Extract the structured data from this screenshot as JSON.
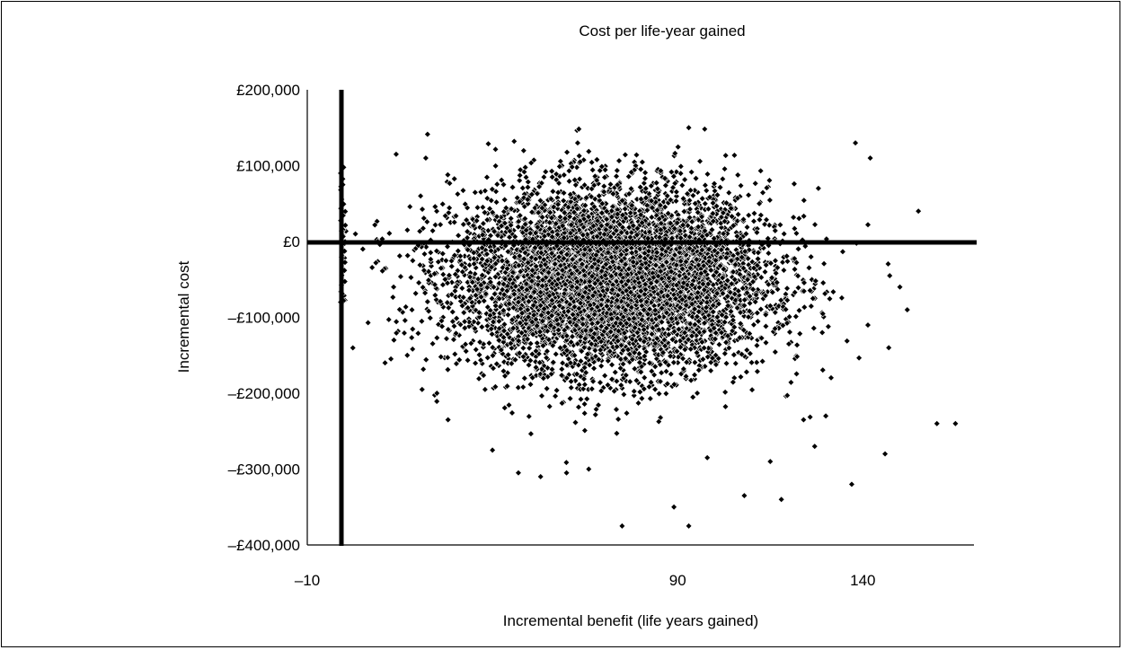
{
  "chart_data": {
    "type": "scatter",
    "title": "Cost per life-year gained",
    "xlabel": "Incremental benefit (life years gained)",
    "ylabel": "Incremental cost",
    "xlim": [
      -10,
      170
    ],
    "ylim": [
      -400000,
      200000
    ],
    "x_ticks": [
      {
        "value": -10,
        "label": "–10"
      },
      {
        "value": 90,
        "label": "90"
      },
      {
        "value": 140,
        "label": "140"
      }
    ],
    "y_ticks": [
      {
        "value": 200000,
        "label": "£200,000"
      },
      {
        "value": 100000,
        "label": "£100,000"
      },
      {
        "value": 0,
        "label": "£0"
      },
      {
        "value": -100000,
        "label": "–£100,000"
      },
      {
        "value": -200000,
        "label": "–£200,000"
      },
      {
        "value": -300000,
        "label": "–£300,000"
      },
      {
        "value": -400000,
        "label": "–£400,000"
      }
    ],
    "grid": false,
    "legend": "none",
    "marker_color": "#000000",
    "marker_edge_color": "#ffffff",
    "series": [
      {
        "distribution": "cloud centred near x = 72 (sd 21), y = –£50,000 (sd 60,000); about 9000 simulation points",
        "points": [
          [
            9,
            0
          ],
          [
            3,
            10000
          ],
          [
            -1,
            90000
          ],
          [
            -1,
            -80000
          ],
          [
            5,
            -10000
          ],
          [
            25,
            -200000
          ],
          [
            28,
            -235000
          ],
          [
            40,
            -275000
          ],
          [
            47,
            -305000
          ],
          [
            53,
            -310000
          ],
          [
            60,
            -305000
          ],
          [
            66,
            -300000
          ],
          [
            75,
            -375000
          ],
          [
            89,
            -350000
          ],
          [
            93,
            -375000
          ],
          [
            98,
            -285000
          ],
          [
            108,
            -335000
          ],
          [
            118,
            -340000
          ],
          [
            137,
            -320000
          ],
          [
            146,
            -280000
          ],
          [
            160,
            -240000
          ],
          [
            165,
            -240000
          ],
          [
            155,
            40000
          ],
          [
            138,
            130000
          ],
          [
            93,
            150000
          ],
          [
            63,
            130000
          ],
          [
            14,
            115000
          ],
          [
            22,
            110000
          ],
          [
            150,
            -60000
          ],
          [
            152,
            -90000
          ],
          [
            147,
            -140000
          ],
          [
            130,
            -230000
          ],
          [
            128,
            70000
          ],
          [
            142,
            110000
          ],
          [
            11,
            -160000
          ],
          [
            17,
            -150000
          ],
          [
            21,
            -195000
          ],
          [
            124,
            -235000
          ],
          [
            127,
            -270000
          ],
          [
            115,
            -290000
          ]
        ]
      }
    ]
  }
}
